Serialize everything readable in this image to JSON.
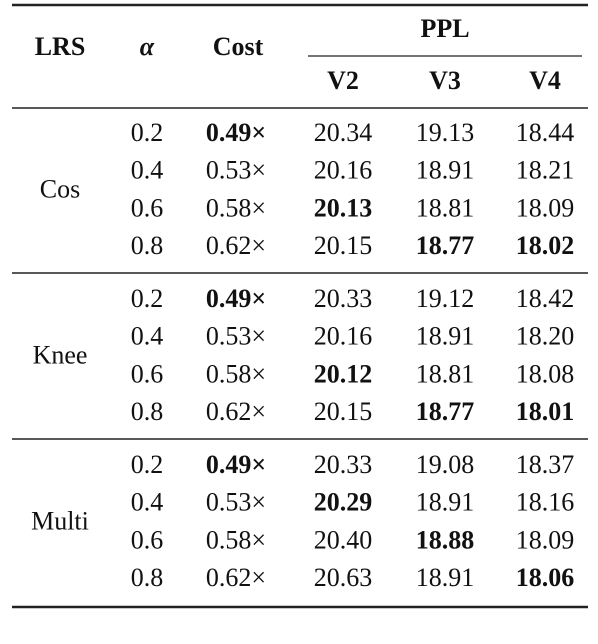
{
  "table": {
    "header": {
      "lrs": "LRS",
      "alpha": "α",
      "cost": "Cost",
      "ppl": "PPL",
      "versions": [
        "V2",
        "V3",
        "V4"
      ]
    },
    "groups": [
      {
        "label": "Cos",
        "rows": [
          {
            "cells": [
              "0.2",
              "0.49×",
              "20.34",
              "19.13",
              "18.44"
            ],
            "bold": [
              1
            ]
          },
          {
            "cells": [
              "0.4",
              "0.53×",
              "20.16",
              "18.91",
              "18.21"
            ],
            "bold": []
          },
          {
            "cells": [
              "0.6",
              "0.58×",
              "20.13",
              "18.81",
              "18.09"
            ],
            "bold": [
              2
            ]
          },
          {
            "cells": [
              "0.8",
              "0.62×",
              "20.15",
              "18.77",
              "18.02"
            ],
            "bold": [
              3,
              4
            ]
          }
        ]
      },
      {
        "label": "Knee",
        "rows": [
          {
            "cells": [
              "0.2",
              "0.49×",
              "20.33",
              "19.12",
              "18.42"
            ],
            "bold": [
              1
            ]
          },
          {
            "cells": [
              "0.4",
              "0.53×",
              "20.16",
              "18.91",
              "18.20"
            ],
            "bold": []
          },
          {
            "cells": [
              "0.6",
              "0.58×",
              "20.12",
              "18.81",
              "18.08"
            ],
            "bold": [
              2
            ]
          },
          {
            "cells": [
              "0.8",
              "0.62×",
              "20.15",
              "18.77",
              "18.01"
            ],
            "bold": [
              3,
              4
            ]
          }
        ]
      },
      {
        "label": "Multi",
        "rows": [
          {
            "cells": [
              "0.2",
              "0.49×",
              "20.33",
              "19.08",
              "18.37"
            ],
            "bold": [
              1
            ]
          },
          {
            "cells": [
              "0.4",
              "0.53×",
              "20.29",
              "18.91",
              "18.16"
            ],
            "bold": [
              2
            ]
          },
          {
            "cells": [
              "0.6",
              "0.58×",
              "20.40",
              "18.88",
              "18.09"
            ],
            "bold": [
              3
            ]
          },
          {
            "cells": [
              "0.8",
              "0.62×",
              "20.63",
              "18.91",
              "18.06"
            ],
            "bold": [
              4
            ]
          }
        ]
      }
    ]
  }
}
